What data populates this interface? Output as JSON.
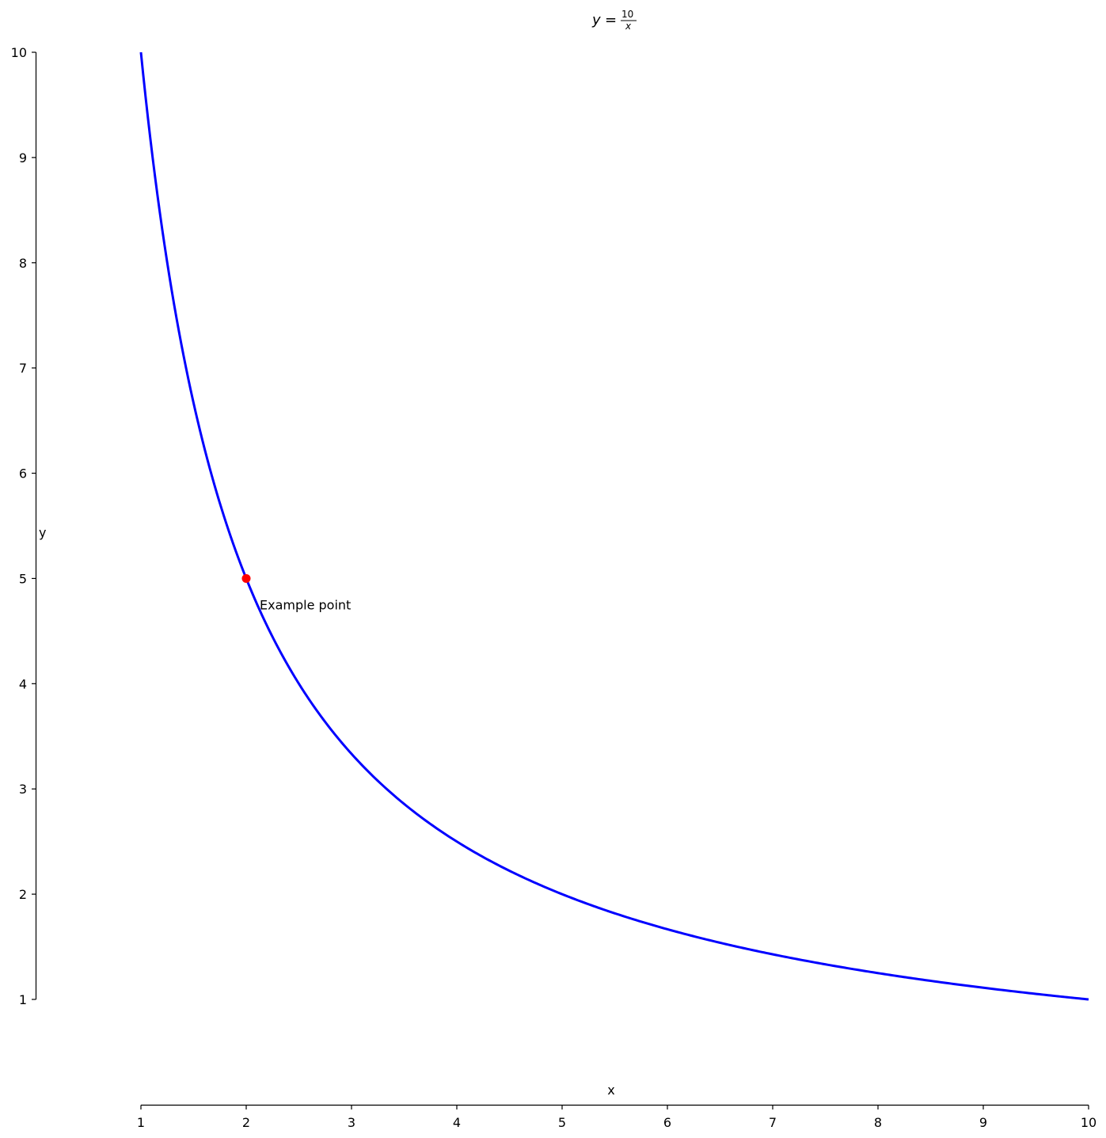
{
  "chart_data": {
    "type": "line",
    "title": "y = 10/x",
    "title_parts": {
      "lhs": "y",
      "eq": "=",
      "numerator": "10",
      "denominator": "x"
    },
    "xlabel": "x",
    "ylabel": "y",
    "xlim": [
      1,
      10
    ],
    "ylim": [
      1,
      10
    ],
    "xticks": [
      1,
      2,
      3,
      4,
      5,
      6,
      7,
      8,
      9,
      10
    ],
    "yticks": [
      1,
      2,
      3,
      4,
      5,
      6,
      7,
      8,
      9,
      10
    ],
    "grid": false,
    "legend": null,
    "series": [
      {
        "name": "y = 10/x",
        "color": "#0000ff",
        "function": "10/x",
        "x": [
          1,
          1.25,
          1.5,
          1.75,
          2,
          2.5,
          3,
          3.5,
          4,
          4.5,
          5,
          6,
          7,
          8,
          9,
          10
        ],
        "y": [
          10,
          8,
          6.667,
          5.714,
          5,
          4,
          3.333,
          2.857,
          2.5,
          2.222,
          2,
          1.667,
          1.429,
          1.25,
          1.111,
          1
        ]
      }
    ],
    "annotations": [
      {
        "type": "point",
        "x": 2,
        "y": 5,
        "color": "#ff0000",
        "label": "Example point"
      }
    ]
  },
  "colors": {
    "line": "#0000ff",
    "point": "#ff0000",
    "axis": "#000000"
  }
}
